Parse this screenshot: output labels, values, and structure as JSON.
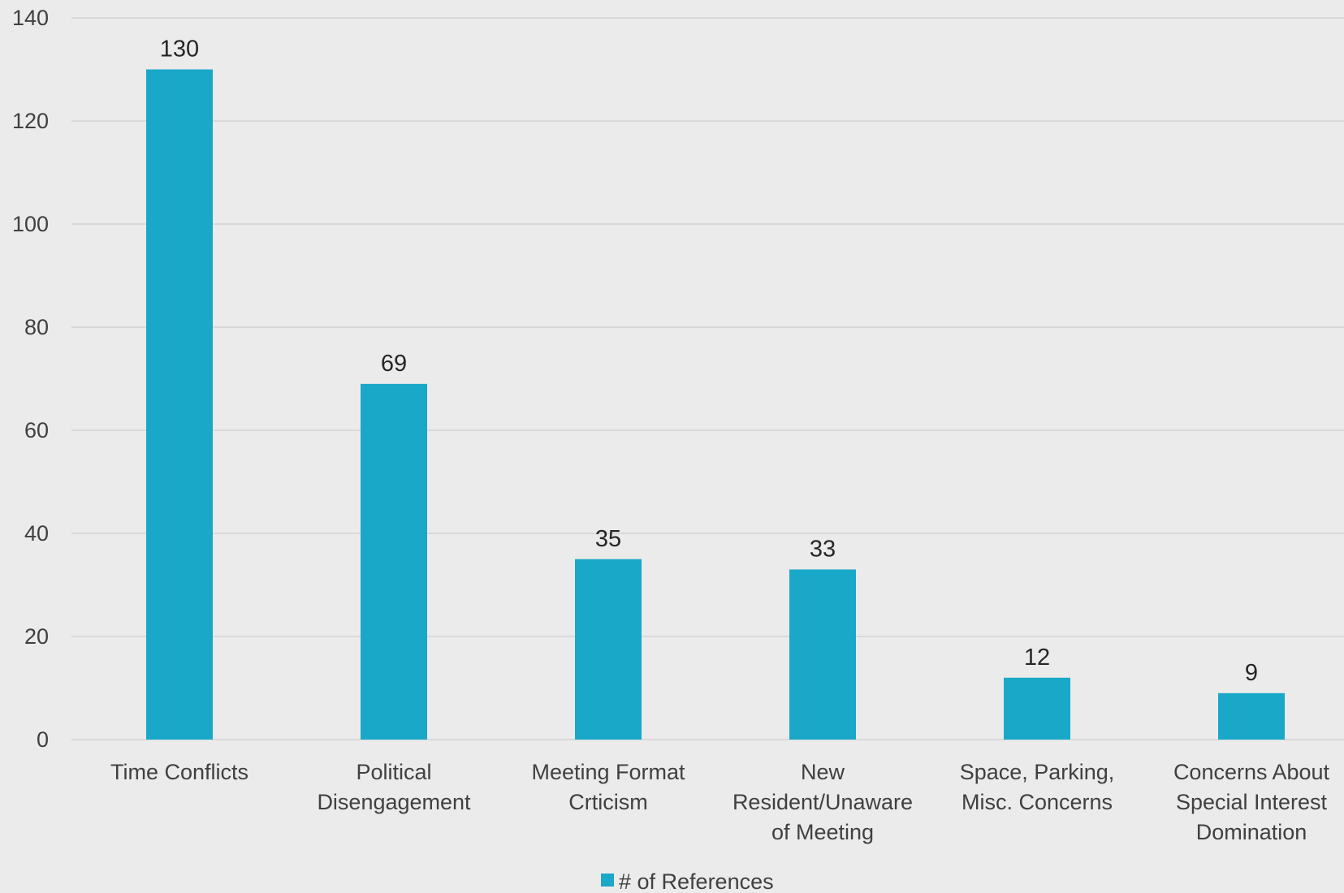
{
  "chart_data": {
    "type": "bar",
    "categories": [
      [
        "Time Conflicts"
      ],
      [
        "Political",
        "Disengagement"
      ],
      [
        "Meeting Format",
        "Crticism"
      ],
      [
        "New",
        "Resident/Unaware",
        "of Meeting"
      ],
      [
        "Space, Parking,",
        "Misc. Concerns"
      ],
      [
        "Concerns About",
        "Special Interest",
        "Domination"
      ]
    ],
    "series": [
      {
        "name": "# of References",
        "values": [
          130,
          69,
          35,
          33,
          12,
          9
        ]
      }
    ],
    "ylim": [
      0,
      140
    ],
    "yticks": [
      0,
      20,
      40,
      60,
      80,
      100,
      120,
      140
    ],
    "grid": true,
    "legend_position": "bottom",
    "colors": {
      "bar": "#1aa8c8",
      "grid": "#d9d9d9",
      "text": "#404040",
      "label": "#262626",
      "background": "#ebebeb"
    }
  }
}
